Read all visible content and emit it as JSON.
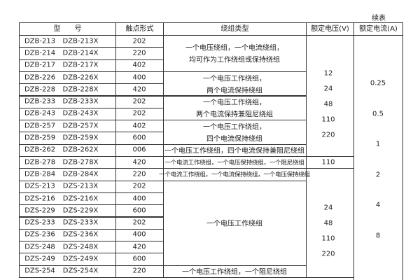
{
  "caption": "续表",
  "headers": [
    "型　　号",
    "触点形式",
    "绕组类型",
    "额定电压(V)",
    "额定电流(A)"
  ],
  "rows": [
    [
      "DZB-213",
      "DZB-213X",
      "202"
    ],
    [
      "DZB-214",
      "DZB-214X",
      "220"
    ],
    [
      "DZB-217",
      "DZB-217X",
      "402"
    ],
    [
      "DZB-226",
      "DZB-226X",
      "400"
    ],
    [
      "DZB-228",
      "DZB-228X",
      "420"
    ],
    [
      "DZB-233",
      "DZB-233X",
      "202"
    ],
    [
      "DZB-243",
      "DZB-243X",
      "202"
    ],
    [
      "DZB-257",
      "DZB-257X",
      "402"
    ],
    [
      "DZB-259",
      "DZB-259X",
      "600"
    ],
    [
      "DZB-262",
      "DZB-262X",
      "006"
    ],
    [
      "DZB-278",
      "DZB-278X",
      "420"
    ],
    [
      "DZB-284",
      "DZB-284X",
      "220"
    ],
    [
      "DZS-213",
      "DZS-213X",
      "202"
    ],
    [
      "DZS-216",
      "DZS-216X",
      "400"
    ],
    [
      "DZS-229",
      "DZS-229X",
      "600"
    ],
    [
      "DZS-233",
      "DZS-233X",
      "202"
    ],
    [
      "DZS-236",
      "DZS-236X",
      "400"
    ],
    [
      "DZS-248",
      "DZS-248X",
      "420"
    ],
    [
      "DZS-249",
      "DZS-249X",
      "600"
    ],
    [
      "DZS-254",
      "DZS-254X",
      "220"
    ]
  ],
  "windings": [
    {
      "from": 0,
      "to": 2,
      "lines": [
        "一个电压绕组，一个电流绕组，",
        "均可作为工作绕组或保持绕组"
      ]
    },
    {
      "from": 3,
      "to": 4,
      "lines": [
        "一个电压工作绕组，",
        "两个电流保持绕组"
      ]
    },
    {
      "from": 5,
      "to": 6,
      "lines": [
        "一个电压工作绕组，",
        "两个电流保持兼阻尼绕组"
      ]
    },
    {
      "from": 7,
      "to": 8,
      "lines": [
        "一个电压工作绕组，",
        "四个电流保持绕组"
      ]
    },
    {
      "from": 9,
      "to": 9,
      "lines": [
        "一个电压工作绕组，四个电流保持兼阻尼绕组"
      ]
    },
    {
      "from": 10,
      "to": 10,
      "lines": [
        "一个电流工作绕组，一个电压保持绕组，一个阻尼绕组"
      ],
      "small": true
    },
    {
      "from": 11,
      "to": 11,
      "lines": [
        "一个电流工作绕组，一个电流保持绕组，一个电压保持绕组"
      ],
      "small": true
    },
    {
      "from": 12,
      "to": 18,
      "lines": [
        "一个电压工作绕组"
      ]
    },
    {
      "from": 19,
      "to": 19,
      "lines": [
        "一个电压工作绕组，一个阻尼绕组"
      ]
    }
  ],
  "voltages": [
    {
      "from": 0,
      "to": 9,
      "values": [
        "12",
        "24",
        "48",
        "110",
        "220"
      ]
    },
    {
      "from": 10,
      "to": 10,
      "values": [
        "110"
      ]
    },
    {
      "from": 11,
      "to": 19,
      "values": [
        "24",
        "48",
        "110",
        "220"
      ]
    }
  ],
  "currents": [
    "0.25",
    "0.5",
    "1",
    "2",
    "4",
    "8"
  ]
}
